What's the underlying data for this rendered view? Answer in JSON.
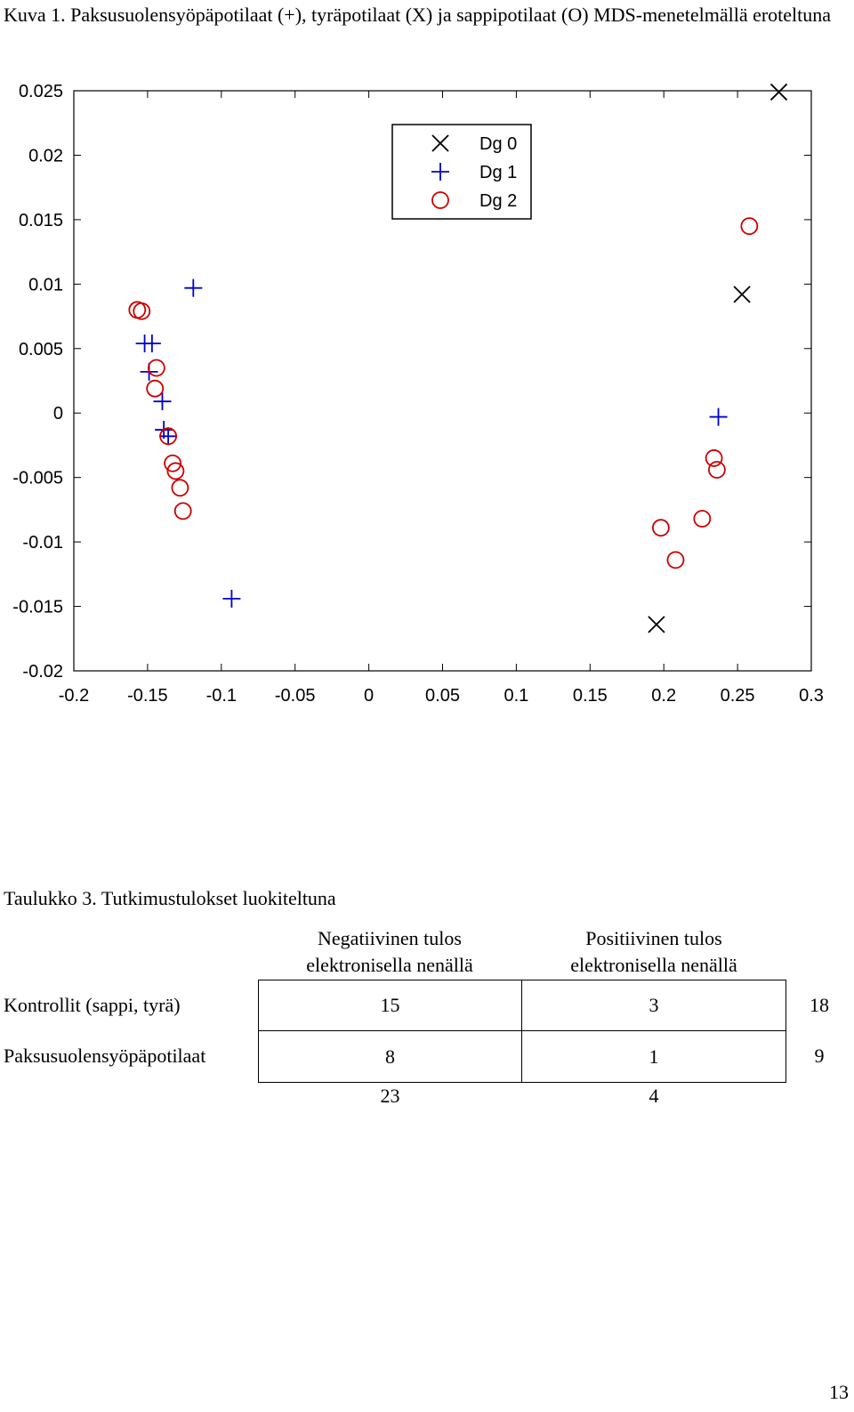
{
  "figure_caption": "Kuva 1. Paksusuolensyöpäpotilaat (+), tyräpotilaat (X) ja sappipotilaat (O) MDS-menetelmällä eroteltuna",
  "chart_data": {
    "type": "scatter",
    "title": "",
    "xlabel": "",
    "ylabel": "",
    "xlim": [
      -0.2,
      0.3
    ],
    "ylim": [
      -0.02,
      0.025
    ],
    "xticks": [
      "-0.2",
      "-0.15",
      "-0.1",
      "-0.05",
      "0",
      "0.05",
      "0.1",
      "0.15",
      "0.2",
      "0.25",
      "0.3"
    ],
    "yticks": [
      "0.025",
      "0.02",
      "0.015",
      "0.01",
      "0.005",
      "0",
      "-0.005",
      "-0.01",
      "-0.015",
      "-0.02"
    ],
    "grid": false,
    "legend_position": "top-center",
    "series": [
      {
        "name": "Dg 0",
        "marker": "x",
        "color": "#000000",
        "points": [
          [
            0.278,
            0.0249
          ],
          [
            0.253,
            0.0092
          ],
          [
            0.195,
            -0.0164
          ]
        ]
      },
      {
        "name": "Dg 1",
        "marker": "+",
        "color": "#0000cc",
        "points": [
          [
            -0.119,
            0.0097
          ],
          [
            -0.152,
            0.0054
          ],
          [
            -0.147,
            0.0054
          ],
          [
            -0.149,
            0.0032
          ],
          [
            -0.14,
            0.0009
          ],
          [
            -0.139,
            -0.0013
          ],
          [
            -0.136,
            -0.0018
          ],
          [
            -0.093,
            -0.0144
          ],
          [
            0.237,
            -0.0003
          ]
        ]
      },
      {
        "name": "Dg 2",
        "marker": "o",
        "color": "#cc0000",
        "points": [
          [
            -0.157,
            0.008
          ],
          [
            -0.154,
            0.0079
          ],
          [
            -0.144,
            0.0035
          ],
          [
            -0.145,
            0.0019
          ],
          [
            -0.136,
            -0.0018
          ],
          [
            -0.133,
            -0.0039
          ],
          [
            -0.131,
            -0.0045
          ],
          [
            -0.128,
            -0.0058
          ],
          [
            -0.126,
            -0.0076
          ],
          [
            0.258,
            0.0145
          ],
          [
            0.234,
            -0.0035
          ],
          [
            0.236,
            -0.0044
          ],
          [
            0.226,
            -0.0082
          ],
          [
            0.198,
            -0.0089
          ],
          [
            0.208,
            -0.0114
          ]
        ]
      }
    ]
  },
  "table": {
    "caption": "Taulukko 3. Tutkimustulokset luokiteltuna",
    "columns": [
      {
        "line1": "Negatiivinen tulos",
        "line2": "elektronisella nenällä"
      },
      {
        "line1": "Positiivinen tulos",
        "line2": "elektronisella nenällä"
      }
    ],
    "rows": [
      {
        "label": "Kontrollit (sappi, tyrä)",
        "values": [
          "15",
          "3"
        ],
        "total": "18"
      },
      {
        "label": "Paksusuolensyöpäpotilaat",
        "values": [
          "8",
          "1"
        ],
        "total": "9"
      }
    ],
    "column_totals": [
      "23",
      "4"
    ]
  },
  "page_number": "13"
}
